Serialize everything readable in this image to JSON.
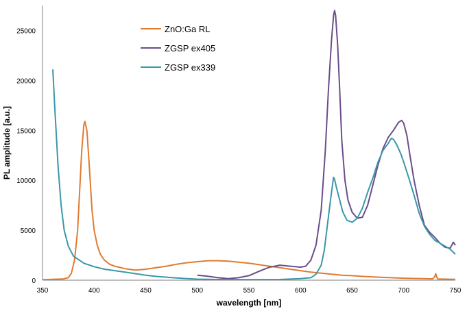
{
  "chart_data": {
    "type": "line",
    "xlabel": "wavelength [nm]",
    "ylabel": "PL amplitude [a.u.]",
    "xlim": [
      350,
      750
    ],
    "ylim": [
      0,
      25000
    ],
    "x_ticks": [
      350,
      400,
      450,
      500,
      550,
      600,
      650,
      700,
      750
    ],
    "y_ticks": [
      0,
      5000,
      10000,
      15000,
      20000,
      25000
    ],
    "grid": false,
    "legend_position": "top-left-inside",
    "series": [
      {
        "name": "ZnO:Ga RL",
        "color": "#E07B30",
        "points": [
          [
            350,
            50
          ],
          [
            360,
            80
          ],
          [
            370,
            120
          ],
          [
            375,
            250
          ],
          [
            378,
            700
          ],
          [
            381,
            2000
          ],
          [
            384,
            5000
          ],
          [
            386,
            9000
          ],
          [
            388,
            13000
          ],
          [
            390,
            15500
          ],
          [
            391,
            15900
          ],
          [
            393,
            15000
          ],
          [
            395,
            12000
          ],
          [
            398,
            7000
          ],
          [
            400,
            5000
          ],
          [
            403,
            3500
          ],
          [
            406,
            2600
          ],
          [
            410,
            2000
          ],
          [
            415,
            1600
          ],
          [
            420,
            1400
          ],
          [
            430,
            1150
          ],
          [
            440,
            1000
          ],
          [
            450,
            1100
          ],
          [
            460,
            1250
          ],
          [
            470,
            1400
          ],
          [
            480,
            1600
          ],
          [
            490,
            1750
          ],
          [
            500,
            1850
          ],
          [
            510,
            1950
          ],
          [
            520,
            1950
          ],
          [
            530,
            1900
          ],
          [
            540,
            1800
          ],
          [
            550,
            1700
          ],
          [
            560,
            1550
          ],
          [
            570,
            1400
          ],
          [
            580,
            1250
          ],
          [
            590,
            1100
          ],
          [
            600,
            950
          ],
          [
            610,
            800
          ],
          [
            620,
            700
          ],
          [
            630,
            600
          ],
          [
            640,
            500
          ],
          [
            650,
            450
          ],
          [
            660,
            380
          ],
          [
            670,
            320
          ],
          [
            680,
            280
          ],
          [
            690,
            240
          ],
          [
            700,
            200
          ],
          [
            710,
            170
          ],
          [
            720,
            150
          ],
          [
            728,
            130
          ],
          [
            730,
            350
          ],
          [
            731,
            650
          ],
          [
            732,
            300
          ],
          [
            733,
            120
          ],
          [
            740,
            100
          ],
          [
            750,
            90
          ]
        ]
      },
      {
        "name": "ZGSP ex405",
        "color": "#6B4C8A",
        "points": [
          [
            500,
            500
          ],
          [
            510,
            400
          ],
          [
            520,
            250
          ],
          [
            530,
            150
          ],
          [
            540,
            250
          ],
          [
            550,
            450
          ],
          [
            560,
            900
          ],
          [
            570,
            1300
          ],
          [
            575,
            1400
          ],
          [
            580,
            1500
          ],
          [
            590,
            1400
          ],
          [
            600,
            1300
          ],
          [
            605,
            1400
          ],
          [
            610,
            2000
          ],
          [
            615,
            3500
          ],
          [
            620,
            7000
          ],
          [
            624,
            13000
          ],
          [
            627,
            19000
          ],
          [
            630,
            24000
          ],
          [
            632,
            26500
          ],
          [
            633,
            27000
          ],
          [
            634,
            26500
          ],
          [
            636,
            23500
          ],
          [
            638,
            19000
          ],
          [
            640,
            14000
          ],
          [
            643,
            10000
          ],
          [
            646,
            8000
          ],
          [
            650,
            6800
          ],
          [
            655,
            6200
          ],
          [
            660,
            6300
          ],
          [
            665,
            7500
          ],
          [
            670,
            9500
          ],
          [
            675,
            11500
          ],
          [
            680,
            13200
          ],
          [
            685,
            14300
          ],
          [
            690,
            15000
          ],
          [
            695,
            15800
          ],
          [
            698,
            16000
          ],
          [
            700,
            15700
          ],
          [
            703,
            14500
          ],
          [
            706,
            12500
          ],
          [
            710,
            10000
          ],
          [
            715,
            7500
          ],
          [
            720,
            5500
          ],
          [
            725,
            4800
          ],
          [
            730,
            4300
          ],
          [
            735,
            3700
          ],
          [
            740,
            3300
          ],
          [
            745,
            3200
          ],
          [
            748,
            3800
          ],
          [
            750,
            3500
          ]
        ]
      },
      {
        "name": "ZGSP ex339",
        "color": "#3A97A8",
        "points": [
          [
            360,
            21100
          ],
          [
            362,
            17000
          ],
          [
            365,
            11500
          ],
          [
            368,
            7500
          ],
          [
            371,
            5000
          ],
          [
            375,
            3400
          ],
          [
            380,
            2400
          ],
          [
            390,
            1700
          ],
          [
            400,
            1350
          ],
          [
            410,
            1100
          ],
          [
            420,
            950
          ],
          [
            430,
            800
          ],
          [
            440,
            650
          ],
          [
            450,
            500
          ],
          [
            460,
            380
          ],
          [
            470,
            300
          ],
          [
            480,
            220
          ],
          [
            490,
            150
          ],
          [
            500,
            100
          ],
          [
            520,
            70
          ],
          [
            540,
            60
          ],
          [
            560,
            60
          ],
          [
            580,
            70
          ],
          [
            600,
            150
          ],
          [
            610,
            250
          ],
          [
            615,
            600
          ],
          [
            620,
            1500
          ],
          [
            623,
            3000
          ],
          [
            626,
            5500
          ],
          [
            629,
            8000
          ],
          [
            632,
            10300
          ],
          [
            633,
            10100
          ],
          [
            635,
            9200
          ],
          [
            638,
            8000
          ],
          [
            641,
            6800
          ],
          [
            645,
            6000
          ],
          [
            650,
            5800
          ],
          [
            655,
            6200
          ],
          [
            660,
            7200
          ],
          [
            665,
            8800
          ],
          [
            670,
            10200
          ],
          [
            675,
            11800
          ],
          [
            680,
            13000
          ],
          [
            685,
            13700
          ],
          [
            688,
            14200
          ],
          [
            690,
            14100
          ],
          [
            693,
            13600
          ],
          [
            697,
            12700
          ],
          [
            700,
            11800
          ],
          [
            705,
            10200
          ],
          [
            710,
            8500
          ],
          [
            715,
            6700
          ],
          [
            720,
            5400
          ],
          [
            725,
            4600
          ],
          [
            730,
            4000
          ],
          [
            735,
            3700
          ],
          [
            740,
            3400
          ],
          [
            745,
            3100
          ],
          [
            750,
            2600
          ]
        ]
      }
    ]
  }
}
